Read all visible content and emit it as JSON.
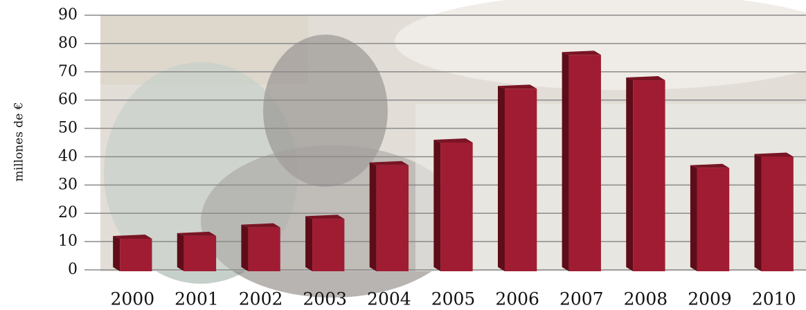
{
  "chart_data": {
    "type": "bar",
    "y_label": "millones de €",
    "categories": [
      "2000",
      "2001",
      "2002",
      "2003",
      "2004",
      "2005",
      "2006",
      "2007",
      "2008",
      "2009",
      "2010"
    ],
    "values": [
      11,
      12,
      15,
      18,
      37,
      45,
      64,
      76,
      67,
      36,
      40
    ],
    "color": "#a01c32",
    "ylim": [
      0,
      90
    ],
    "yticks": [
      0,
      10,
      20,
      30,
      40,
      50,
      60,
      70,
      80,
      90
    ],
    "grid": true
  }
}
